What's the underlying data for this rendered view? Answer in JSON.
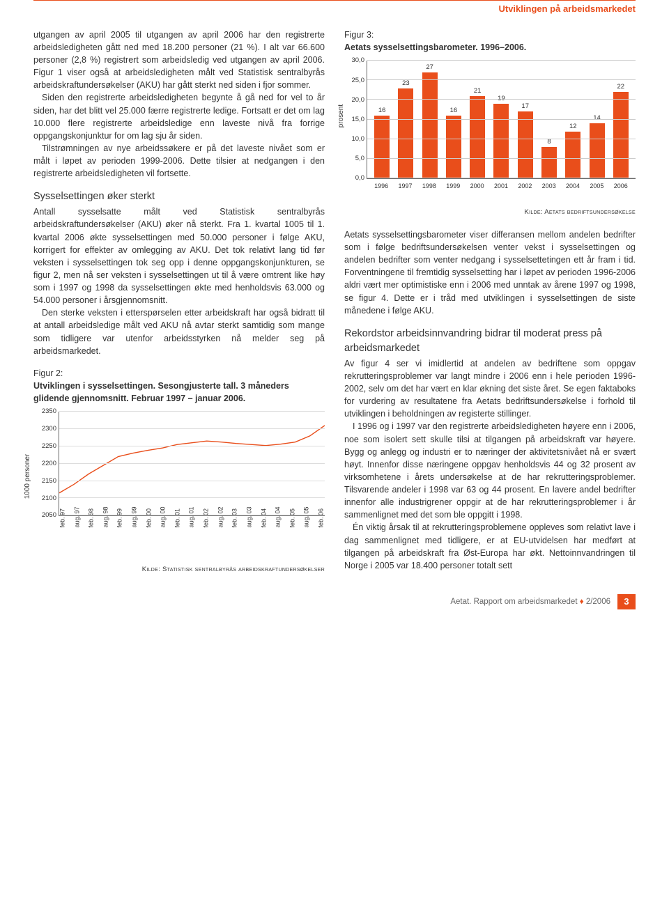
{
  "header": "Utviklingen på arbeidsmarkedet",
  "col1": {
    "p1": "utgangen av april 2005 til utgangen av april 2006 har den registrerte arbeidsledigheten gått ned med 18.200 personer (21 %). I alt var 66.600 personer (2,8 %) registrert som arbeidsledig ved utgangen av april 2006. Figur 1 viser også at arbeidsledigheten målt ved Statistisk sentralbyrås arbeidskraftundersøkelser (AKU) har gått sterkt ned siden i fjor sommer.",
    "p2": "Siden den registrerte arbeidsledigheten begynte å gå ned for vel to år siden, har det blitt vel 25.000 færre registrerte ledige. Fortsatt er det om lag 10.000 flere registrerte arbeidsledige enn laveste nivå fra forrige oppgangskonjunktur for om lag sju år siden.",
    "p3": "Tilstrømningen av nye arbeidssøkere er på det laveste nivået som er målt i løpet av perioden 1999-2006. Dette tilsier at nedgangen i den registrerte arbeidsledigheten vil fortsette.",
    "h2": "Sysselsettingen øker sterkt",
    "p4": "Antall sysselsatte målt ved Statistisk sentralbyrås arbeidskraftundersøkelser (AKU) øker nå sterkt. Fra 1. kvartal 1005 til 1. kvartal 2006 økte sysselsettingen med 50.000 personer i følge AKU, korrigert for effekter av omlegging av AKU. Det tok relativt lang tid før veksten i sysselsettingen tok seg opp i denne oppgangskonjunkturen, se figur 2, men nå ser veksten i sysselsettingen ut til å være omtrent like høy som i 1997 og 1998 da sysselsettingen økte med henholdsvis 63.000 og 54.000 personer i årsgjennomsnitt.",
    "p5": "Den sterke veksten i etterspørselen etter arbeidskraft har også bidratt til at antall arbeidsledige målt ved AKU nå avtar sterkt samtidig som mange som tidligere var utenfor arbeidsstyrken nå melder seg på arbeidsmarkedet.",
    "fig2_label": "Figur 2:",
    "fig2_title": "Utviklingen i sysselsettingen. Sesongjusterte tall. 3 måneders glidende gjennomsnitt. Februar 1997 – januar 2006.",
    "fig2_source": "Kilde: Statistisk sentralbyrås arbeidskraftundersøkelser"
  },
  "col2": {
    "fig3_label": "Figur 3:",
    "fig3_title": "Aetats sysselsettingsbarometer. 1996–2006.",
    "fig3_source": "Kilde: Aetats bedriftsundersøkelse",
    "p1": "Aetats sysselsettingsbarometer viser differansen mellom andelen bedrifter som i følge bedriftsundersøkelsen venter vekst i sysselsettingen og andelen bedrifter som venter nedgang i sysselsettetingen ett år fram i tid. Forventningene til fremtidig sysselsetting har i løpet av perioden 1996-2006 aldri vært mer optimistiske enn i 2006 med unntak av årene 1997 og 1998, se figur 4. Dette er i tråd med utviklingen i sysselsettingen de siste månedene i følge AKU.",
    "h2": "Rekordstor arbeidsinnvandring bidrar til moderat press på arbeidsmarkedet",
    "p2": "Av figur 4 ser vi imidlertid at andelen av bedriftene som oppgav rekrutteringsproblemer var langt mindre i 2006 enn i hele perioden 1996-2002, selv om det har vært en klar økning det siste året. Se egen faktaboks for vurdering av resultatene fra Aetats bedriftsundersøkelse i forhold til utviklingen i beholdningen av registerte stillinger.",
    "p3": "I 1996 og i 1997 var den registrerte arbeidsledigheten høyere enn i 2006, noe som isolert sett skulle tilsi at tilgangen på arbeidskraft var høyere. Bygg og anlegg og industri er to næringer der aktivitetsnivået nå er svært høyt. Innenfor disse næringene oppgav henholdsvis 44 og 32 prosent av virksomhetene i årets undersøkelse at de har rekrutteringsproblemer. Tilsvarende andeler i 1998 var 63 og 44 prosent. En lavere andel bedrifter innenfor alle industrigrener oppgir at de har rekrutteringsproblemer i år sammenlignet med det som ble oppgitt i 1998.",
    "p4": "Én viktig årsak til at rekrutteringsproblemene oppleves som relativt lave i dag sammenlignet med tidligere, er at EU-utvidelsen har medført at tilgangen på arbeidskraft fra Øst-Europa har økt. Nettoinnvandringen til Norge i 2005 var 18.400 personer totalt sett"
  },
  "fig3_chart": {
    "type": "bar",
    "ylabel": "prosent",
    "bar_color": "#e94e1b",
    "grid_color": "#cccccc",
    "ymax": 30,
    "ystep": 5,
    "yticks": [
      "0,0",
      "5,0",
      "10,0",
      "15,0",
      "20,0",
      "25,0",
      "30,0"
    ],
    "categories": [
      "1996",
      "1997",
      "1998",
      "1999",
      "2000",
      "2001",
      "2002",
      "2003",
      "2004",
      "2005",
      "2006"
    ],
    "values": [
      16,
      23,
      27,
      16,
      21,
      19,
      17,
      8,
      12,
      14,
      22
    ]
  },
  "fig2_chart": {
    "type": "line",
    "ylabel": "1000 personer",
    "line_color": "#e94e1b",
    "grid_color": "#dddddd",
    "ymin": 2050,
    "ymax": 2350,
    "ystep": 50,
    "yticks": [
      "2050",
      "2100",
      "2150",
      "2200",
      "2250",
      "2300",
      "2350"
    ],
    "x_labels": [
      "feb. 97",
      "aug. 97",
      "feb. 98",
      "aug. 98",
      "feb. 99",
      "aug. 99",
      "feb. 00",
      "aug. 00",
      "feb. 01",
      "aug. 01",
      "feb. 02",
      "aug. 02",
      "feb. 03",
      "aug. 03",
      "feb. 04",
      "aug. 04",
      "feb. 05",
      "aug. 05",
      "feb. 06"
    ],
    "points": [
      2115,
      2140,
      2170,
      2195,
      2220,
      2230,
      2238,
      2245,
      2255,
      2260,
      2265,
      2262,
      2258,
      2255,
      2252,
      2256,
      2262,
      2280,
      2310
    ]
  },
  "footer": {
    "publisher": "Aetat.",
    "title": "Rapport om arbeidsmarkedet",
    "issue": "2/2006",
    "page": "3"
  }
}
